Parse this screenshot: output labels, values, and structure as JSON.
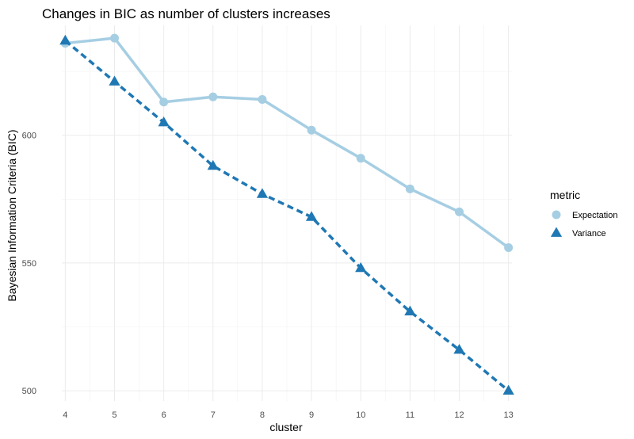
{
  "chart_data": {
    "type": "line",
    "title": "Changes in BIC as number of clusters increases",
    "xlabel": "cluster",
    "ylabel": "Bayesian Information Criteria (BIC)",
    "x": [
      4,
      5,
      6,
      7,
      8,
      9,
      10,
      11,
      12,
      13
    ],
    "x_ticks": [
      "4",
      "5",
      "6",
      "7",
      "8",
      "9",
      "10",
      "11",
      "12",
      "13"
    ],
    "y_ticks": [
      500,
      550,
      600
    ],
    "xlim": [
      3.93,
      13.07
    ],
    "ylim": [
      496,
      643
    ],
    "grid": true,
    "legend": {
      "title": "metric",
      "position": "right"
    },
    "series": [
      {
        "name": "Expectation",
        "marker": "circle",
        "line": "solid",
        "color": "#a6cee3",
        "values": [
          636,
          638,
          613,
          615,
          614,
          602,
          591,
          579,
          570,
          556
        ]
      },
      {
        "name": "Variance",
        "marker": "triangle",
        "line": "dashed",
        "color": "#1f78b4",
        "values": [
          637,
          621,
          605,
          588,
          577,
          568,
          548,
          531,
          516,
          500
        ]
      }
    ]
  }
}
